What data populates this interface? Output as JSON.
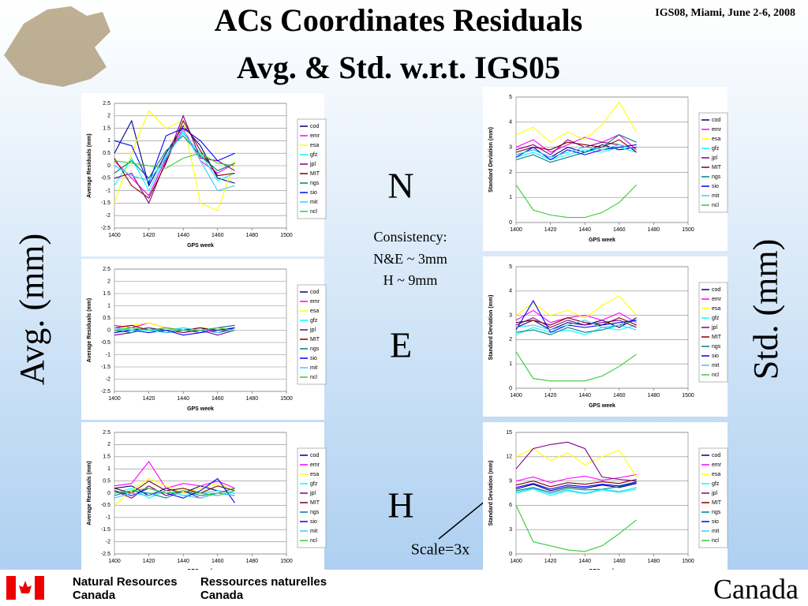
{
  "header": {
    "title_line1": "ACs Coordinates Residuals",
    "title_line2": "Avg. & Std.  w.r.t. IGS05",
    "event": "IGS08, Miami, June 2-6, 2008"
  },
  "side_labels": {
    "left": "Avg. (mm)",
    "right": "Std. (mm)"
  },
  "components": {
    "n": "N",
    "e": "E",
    "h": "H"
  },
  "consistency": {
    "title": "Consistency:",
    "ne": "N&E ~ 3mm",
    "h": "H ~ 9mm"
  },
  "scale_note": "Scale=3x",
  "footer": {
    "en_line1": "Natural Resources",
    "en_line2": "Canada",
    "fr_line1": "Ressources naturelles",
    "fr_line2": "Canada",
    "wordmark": "Canada"
  },
  "chart_data": [
    {
      "type": "line",
      "xlabel": "GPS week",
      "ylabel": "Average Residuals (mm)",
      "xlim": [
        1400,
        1500
      ],
      "xticks": [
        1400,
        1420,
        1440,
        1460,
        1480,
        1500
      ],
      "ylim": [
        -2.5,
        2.5
      ],
      "yticks": [
        -2.5,
        -2,
        -1.5,
        -1,
        -0.5,
        0,
        0.5,
        1,
        1.5,
        2,
        2.5
      ],
      "grid": true,
      "x": [
        1400,
        1410,
        1420,
        1430,
        1440,
        1450,
        1460,
        1470
      ],
      "series": [
        {
          "name": "cod",
          "color": "#000080",
          "values": [
            0.5,
            1.8,
            -0.8,
            0.5,
            1.6,
            0.8,
            -0.5,
            -0.7
          ]
        },
        {
          "name": "emr",
          "color": "#ff00ff",
          "values": [
            0.2,
            -0.5,
            -1.2,
            0.3,
            1.5,
            0.2,
            -0.3,
            0.1
          ]
        },
        {
          "name": "esa",
          "color": "#ffff00",
          "values": [
            -1.5,
            0.5,
            2.2,
            1.5,
            1.8,
            -1.5,
            -1.8,
            0.2
          ]
        },
        {
          "name": "gfz",
          "color": "#00ffff",
          "values": [
            -0.8,
            0.3,
            -1.0,
            0.4,
            1.3,
            0.5,
            -0.6,
            -0.3
          ]
        },
        {
          "name": "jpl",
          "color": "#800080",
          "values": [
            -0.5,
            -0.3,
            -1.5,
            0.2,
            2.0,
            0.3,
            0.2,
            -0.2
          ]
        },
        {
          "name": "MIT",
          "color": "#800000",
          "values": [
            0.3,
            -0.8,
            -1.3,
            0.1,
            1.8,
            0.6,
            -0.4,
            -0.3
          ]
        },
        {
          "name": "ngs",
          "color": "#008080",
          "values": [
            -0.3,
            0.2,
            -0.5,
            0.6,
            1.2,
            0.4,
            -0.2,
            0.1
          ]
        },
        {
          "name": "sio",
          "color": "#0000ff",
          "values": [
            1.0,
            0.8,
            -0.7,
            1.2,
            1.5,
            1.0,
            0.2,
            0.5
          ]
        },
        {
          "name": "mit",
          "color": "#33ccff",
          "values": [
            0.0,
            -0.4,
            -0.6,
            0.3,
            1.4,
            0.2,
            -1.0,
            -0.8
          ]
        },
        {
          "name": "ncl",
          "color": "#33cc33",
          "values": [
            0.2,
            0.1,
            0.0,
            -0.1,
            0.3,
            0.5,
            0.1,
            0.0
          ]
        }
      ]
    },
    {
      "type": "line",
      "xlabel": "GPS week",
      "ylabel": "Standard Deviation (mm)",
      "xlim": [
        1400,
        1500
      ],
      "xticks": [
        1400,
        1420,
        1440,
        1460,
        1480,
        1500
      ],
      "ylim": [
        0,
        5
      ],
      "yticks": [
        0,
        1,
        2,
        3,
        4,
        5
      ],
      "grid": true,
      "x": [
        1400,
        1410,
        1420,
        1430,
        1440,
        1450,
        1460,
        1470
      ],
      "series": [
        {
          "name": "cod",
          "color": "#000080",
          "values": [
            2.7,
            2.9,
            2.6,
            3.0,
            2.8,
            3.1,
            2.9,
            3.0
          ]
        },
        {
          "name": "emr",
          "color": "#ff00ff",
          "values": [
            3.0,
            3.3,
            2.8,
            3.1,
            3.4,
            3.2,
            3.5,
            2.9
          ]
        },
        {
          "name": "esa",
          "color": "#ffff00",
          "values": [
            3.5,
            3.8,
            3.2,
            3.6,
            3.3,
            3.9,
            4.8,
            3.6
          ]
        },
        {
          "name": "gfz",
          "color": "#00ffff",
          "values": [
            2.6,
            2.8,
            2.5,
            2.7,
            2.9,
            2.8,
            3.0,
            2.8
          ]
        },
        {
          "name": "jpl",
          "color": "#800080",
          "values": [
            2.9,
            3.1,
            2.7,
            3.3,
            3.0,
            3.2,
            3.1,
            2.9
          ]
        },
        {
          "name": "MIT",
          "color": "#800000",
          "values": [
            2.8,
            3.0,
            2.9,
            3.2,
            3.1,
            3.0,
            3.3,
            2.8
          ]
        },
        {
          "name": "ngs",
          "color": "#008080",
          "values": [
            2.5,
            2.7,
            2.4,
            2.6,
            2.8,
            3.0,
            3.5,
            3.2
          ]
        },
        {
          "name": "sio",
          "color": "#0000ff",
          "values": [
            2.6,
            3.0,
            2.5,
            2.9,
            2.7,
            2.9,
            3.0,
            3.1
          ]
        },
        {
          "name": "mit",
          "color": "#33ccff",
          "values": [
            2.7,
            2.9,
            2.6,
            2.8,
            3.0,
            2.9,
            3.1,
            2.9
          ]
        },
        {
          "name": "ncl",
          "color": "#33cc33",
          "values": [
            1.5,
            0.5,
            0.3,
            0.2,
            0.2,
            0.4,
            0.8,
            1.5
          ]
        }
      ]
    },
    {
      "type": "line",
      "xlabel": "GPS week",
      "ylabel": "Average Residuals (mm)",
      "xlim": [
        1400,
        1500
      ],
      "xticks": [
        1400,
        1420,
        1440,
        1460,
        1480,
        1500
      ],
      "ylim": [
        -2.5,
        2.5
      ],
      "yticks": [
        -2.5,
        -2,
        -1.5,
        -1,
        -0.5,
        0,
        0.5,
        1,
        1.5,
        2,
        2.5
      ],
      "grid": true,
      "x": [
        1400,
        1410,
        1420,
        1430,
        1440,
        1450,
        1460,
        1470
      ],
      "series": [
        {
          "name": "cod",
          "color": "#000080",
          "values": [
            0.1,
            0.0,
            0.1,
            -0.1,
            0.0,
            0.1,
            -0.1,
            0.1
          ]
        },
        {
          "name": "emr",
          "color": "#ff00ff",
          "values": [
            0.2,
            0.1,
            0.3,
            0.1,
            0.0,
            -0.1,
            0.1,
            0.2
          ]
        },
        {
          "name": "esa",
          "color": "#ffff00",
          "values": [
            0.0,
            0.2,
            0.3,
            0.1,
            -0.1,
            0.0,
            0.1,
            0.0
          ]
        },
        {
          "name": "gfz",
          "color": "#00ffff",
          "values": [
            -0.1,
            0.1,
            0.0,
            0.0,
            0.1,
            -0.1,
            0.0,
            0.1
          ]
        },
        {
          "name": "jpl",
          "color": "#800080",
          "values": [
            -0.2,
            -0.1,
            0.1,
            0.0,
            -0.1,
            0.0,
            -0.2,
            0.0
          ]
        },
        {
          "name": "MIT",
          "color": "#800000",
          "values": [
            0.1,
            0.2,
            0.0,
            0.1,
            0.0,
            0.1,
            0.0,
            0.1
          ]
        },
        {
          "name": "ngs",
          "color": "#008080",
          "values": [
            0.0,
            -0.1,
            0.1,
            -0.1,
            0.0,
            0.0,
            0.1,
            0.2
          ]
        },
        {
          "name": "sio",
          "color": "#0000ff",
          "values": [
            -0.1,
            0.0,
            -0.1,
            0.0,
            -0.2,
            -0.1,
            0.0,
            0.1
          ]
        },
        {
          "name": "mit",
          "color": "#33ccff",
          "values": [
            0.1,
            0.0,
            0.0,
            -0.1,
            0.1,
            0.0,
            -0.1,
            0.0
          ]
        },
        {
          "name": "ncl",
          "color": "#33cc33",
          "values": [
            0.0,
            0.1,
            0.0,
            0.1,
            0.0,
            0.0,
            0.1,
            0.0
          ]
        }
      ]
    },
    {
      "type": "line",
      "xlabel": "GPS week",
      "ylabel": "Standard Deviation (mm)",
      "xlim": [
        1400,
        1500
      ],
      "xticks": [
        1400,
        1420,
        1440,
        1460,
        1480,
        1500
      ],
      "ylim": [
        0,
        5
      ],
      "yticks": [
        0,
        1,
        2,
        3,
        4,
        5
      ],
      "grid": true,
      "x": [
        1400,
        1410,
        1420,
        1430,
        1440,
        1450,
        1460,
        1470
      ],
      "series": [
        {
          "name": "cod",
          "color": "#000080",
          "values": [
            2.5,
            2.8,
            2.4,
            2.7,
            2.6,
            2.8,
            2.5,
            2.9
          ]
        },
        {
          "name": "emr",
          "color": "#ff00ff",
          "values": [
            2.8,
            3.2,
            2.7,
            2.9,
            3.0,
            2.8,
            3.1,
            2.7
          ]
        },
        {
          "name": "esa",
          "color": "#ffff00",
          "values": [
            3.0,
            3.5,
            3.0,
            3.2,
            2.9,
            3.4,
            3.8,
            3.0
          ]
        },
        {
          "name": "gfz",
          "color": "#00ffff",
          "values": [
            2.2,
            2.5,
            2.3,
            2.4,
            2.2,
            2.5,
            2.4,
            2.6
          ]
        },
        {
          "name": "jpl",
          "color": "#800080",
          "values": [
            2.6,
            2.9,
            2.5,
            2.8,
            2.6,
            2.7,
            2.8,
            2.5
          ]
        },
        {
          "name": "MIT",
          "color": "#800000",
          "values": [
            2.7,
            2.8,
            2.6,
            2.9,
            2.7,
            2.6,
            2.9,
            2.6
          ]
        },
        {
          "name": "ngs",
          "color": "#008080",
          "values": [
            2.3,
            2.4,
            2.2,
            2.5,
            2.3,
            2.4,
            2.6,
            2.8
          ]
        },
        {
          "name": "sio",
          "color": "#0000ff",
          "values": [
            2.4,
            3.6,
            2.3,
            2.6,
            2.5,
            2.6,
            2.7,
            2.8
          ]
        },
        {
          "name": "mit",
          "color": "#33ccff",
          "values": [
            2.5,
            2.6,
            2.4,
            2.6,
            2.8,
            2.5,
            2.6,
            2.4
          ]
        },
        {
          "name": "ncl",
          "color": "#33cc33",
          "values": [
            1.5,
            0.4,
            0.3,
            0.3,
            0.3,
            0.5,
            0.9,
            1.4
          ]
        }
      ]
    },
    {
      "type": "line",
      "xlabel": "GPS week",
      "ylabel": "Average Residuals (mm)",
      "xlim": [
        1400,
        1500
      ],
      "xticks": [
        1400,
        1420,
        1440,
        1460,
        1480,
        1500
      ],
      "ylim": [
        -2.5,
        2.5
      ],
      "yticks": [
        -2.5,
        -2,
        -1.5,
        -1,
        -0.5,
        0,
        0.5,
        1,
        1.5,
        2,
        2.5
      ],
      "grid": true,
      "x": [
        1400,
        1410,
        1420,
        1430,
        1440,
        1450,
        1460,
        1470
      ],
      "series": [
        {
          "name": "cod",
          "color": "#000080",
          "values": [
            0.2,
            0.3,
            -0.1,
            0.2,
            0.0,
            0.3,
            0.1,
            0.0
          ]
        },
        {
          "name": "emr",
          "color": "#ff00ff",
          "values": [
            0.3,
            0.4,
            1.3,
            0.2,
            0.4,
            0.3,
            0.5,
            0.2
          ]
        },
        {
          "name": "esa",
          "color": "#ffff00",
          "values": [
            -0.5,
            0.1,
            0.6,
            0.3,
            0.0,
            0.2,
            0.4,
            0.1
          ]
        },
        {
          "name": "gfz",
          "color": "#00ffff",
          "values": [
            0.0,
            0.2,
            -0.2,
            0.1,
            -0.1,
            0.0,
            0.1,
            0.0
          ]
        },
        {
          "name": "jpl",
          "color": "#800080",
          "values": [
            0.1,
            -0.2,
            0.3,
            -0.1,
            0.1,
            -0.2,
            0.0,
            -0.1
          ]
        },
        {
          "name": "MIT",
          "color": "#800000",
          "values": [
            0.2,
            0.0,
            0.5,
            0.1,
            0.2,
            0.0,
            0.3,
            0.1
          ]
        },
        {
          "name": "ngs",
          "color": "#008080",
          "values": [
            -0.1,
            0.1,
            0.0,
            -0.2,
            0.1,
            -0.1,
            0.0,
            0.2
          ]
        },
        {
          "name": "sio",
          "color": "#0000ff",
          "values": [
            0.1,
            -0.1,
            0.2,
            0.0,
            -0.2,
            0.1,
            0.6,
            -0.4
          ]
        },
        {
          "name": "mit",
          "color": "#33ccff",
          "values": [
            -0.2,
            0.0,
            -0.1,
            0.1,
            -0.1,
            -0.2,
            0.0,
            -0.1
          ]
        },
        {
          "name": "ncl",
          "color": "#33cc33",
          "values": [
            0.0,
            0.1,
            0.2,
            0.0,
            0.1,
            0.0,
            -0.1,
            0.1
          ]
        }
      ]
    },
    {
      "type": "line",
      "xlabel": "GPS week",
      "ylabel": "Standard Deviation (mm)",
      "xlim": [
        1400,
        1500
      ],
      "xticks": [
        1400,
        1420,
        1440,
        1460,
        1480,
        1500
      ],
      "ylim": [
        0,
        15
      ],
      "yticks": [
        0,
        3,
        6,
        9,
        12,
        15
      ],
      "grid": true,
      "x": [
        1400,
        1410,
        1420,
        1430,
        1440,
        1450,
        1460,
        1470
      ],
      "series": [
        {
          "name": "cod",
          "color": "#000080",
          "values": [
            8.0,
            8.6,
            7.8,
            8.3,
            8.1,
            8.5,
            8.2,
            8.7
          ]
        },
        {
          "name": "emr",
          "color": "#ff00ff",
          "values": [
            9.0,
            9.5,
            8.8,
            9.3,
            9.6,
            9.1,
            9.4,
            9.8
          ]
        },
        {
          "name": "esa",
          "color": "#ffff00",
          "values": [
            12.0,
            13.0,
            11.5,
            12.5,
            11.0,
            12.0,
            12.8,
            9.5
          ]
        },
        {
          "name": "gfz",
          "color": "#00ffff",
          "values": [
            7.5,
            8.0,
            7.2,
            7.8,
            7.4,
            7.9,
            7.6,
            8.0
          ]
        },
        {
          "name": "jpl",
          "color": "#800080",
          "values": [
            10.5,
            13.0,
            13.5,
            13.8,
            13.0,
            9.5,
            9.2,
            9.0
          ]
        },
        {
          "name": "MIT",
          "color": "#800000",
          "values": [
            8.5,
            9.0,
            8.3,
            8.8,
            8.6,
            8.9,
            8.7,
            9.2
          ]
        },
        {
          "name": "ngs",
          "color": "#008080",
          "values": [
            7.8,
            8.2,
            7.6,
            8.1,
            7.9,
            8.0,
            8.3,
            8.8
          ]
        },
        {
          "name": "sio",
          "color": "#0000ff",
          "values": [
            8.2,
            8.7,
            8.0,
            8.5,
            8.3,
            8.6,
            8.4,
            8.9
          ]
        },
        {
          "name": "mit",
          "color": "#33ccff",
          "values": [
            7.6,
            8.1,
            7.4,
            7.9,
            7.5,
            8.0,
            7.7,
            8.2
          ]
        },
        {
          "name": "ncl",
          "color": "#33cc33",
          "values": [
            6.0,
            1.5,
            1.0,
            0.5,
            0.3,
            1.0,
            2.5,
            4.2
          ]
        }
      ]
    }
  ]
}
